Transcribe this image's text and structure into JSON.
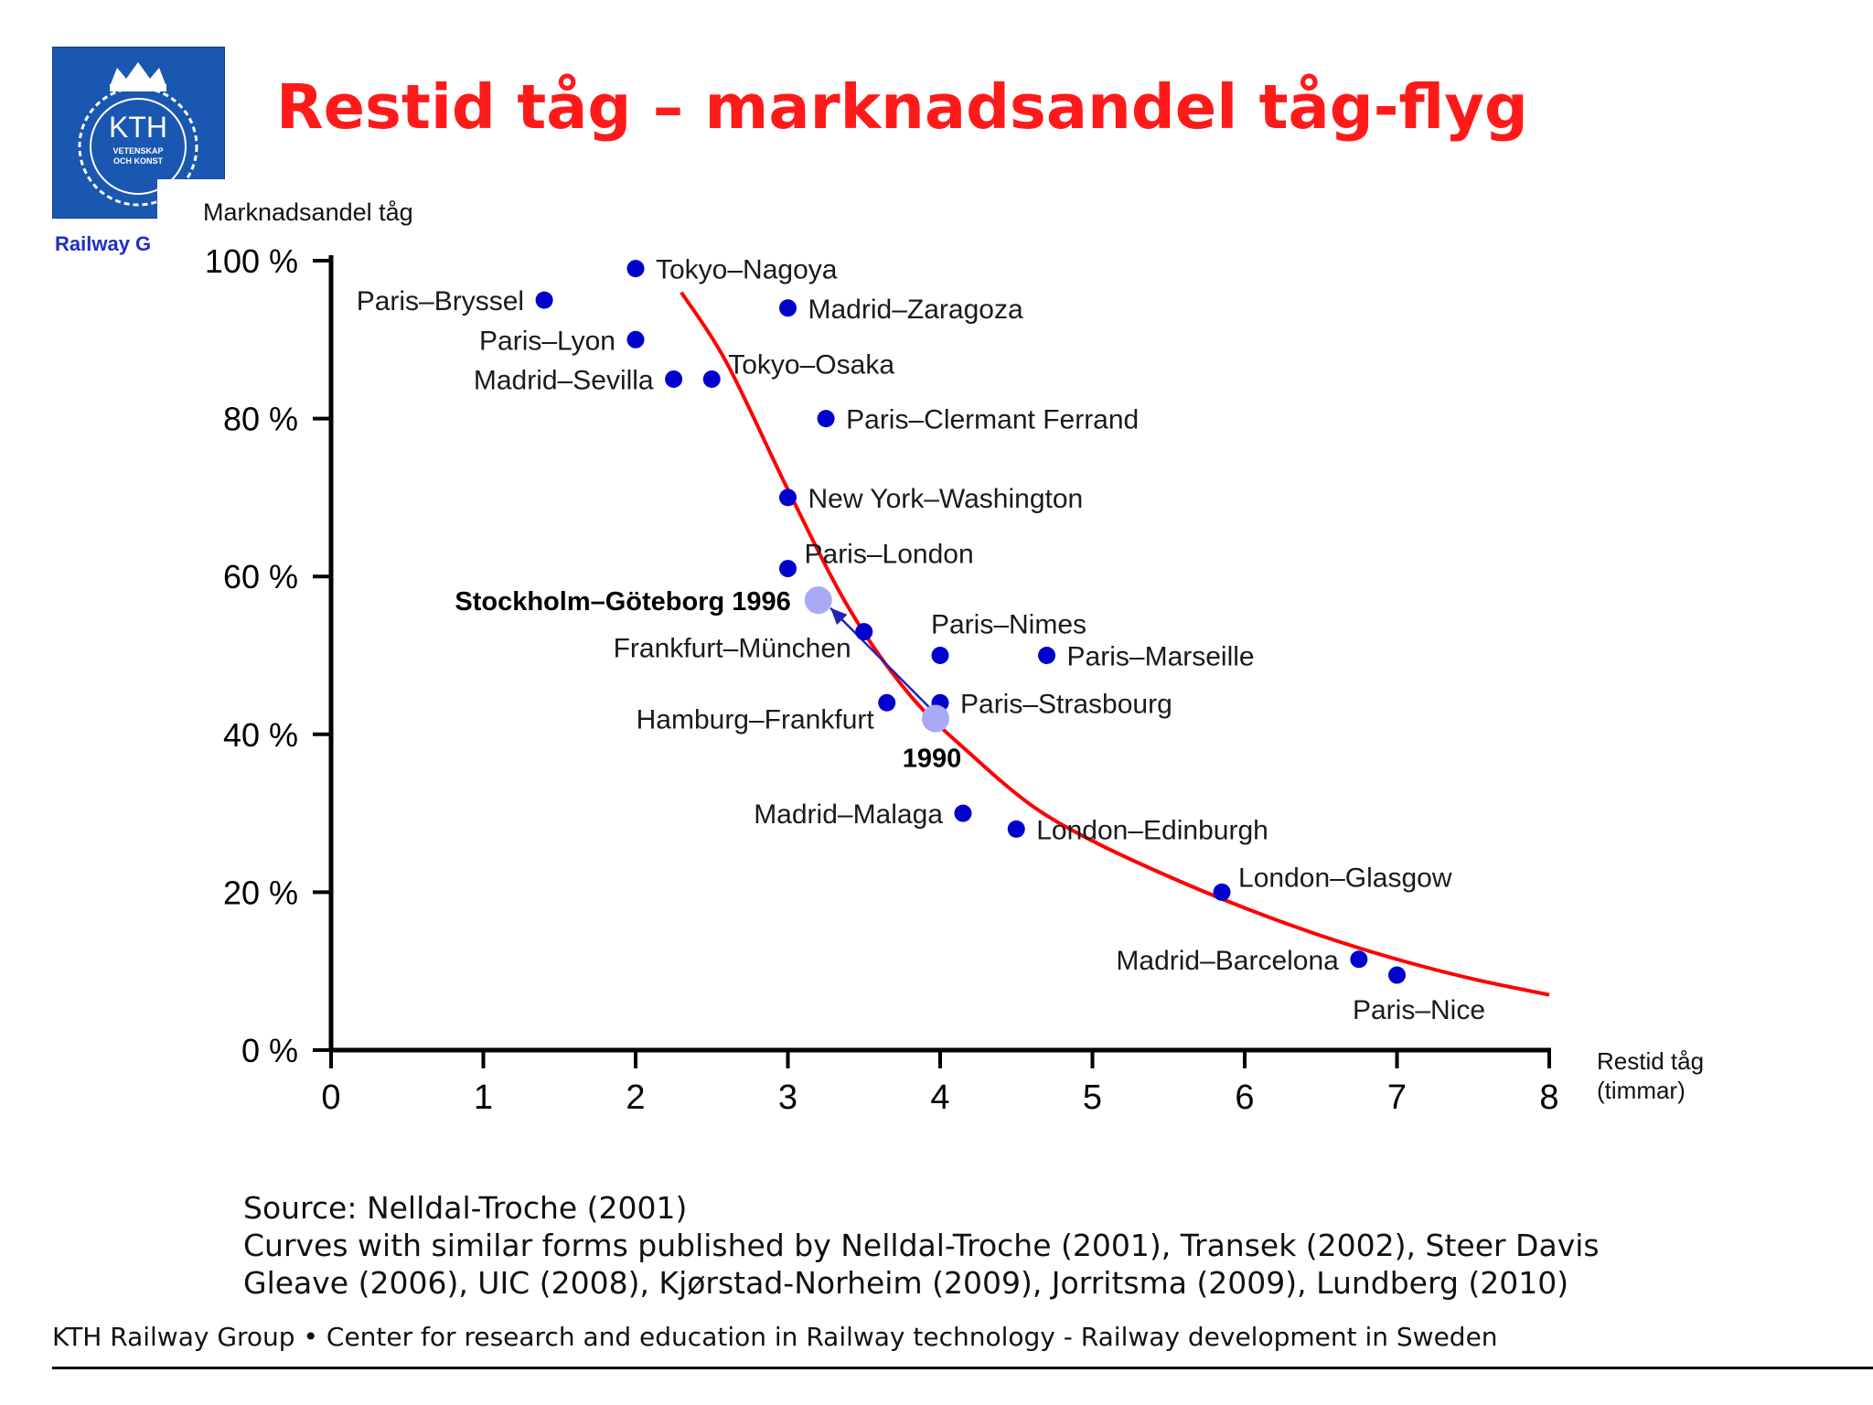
{
  "header": {
    "title": "Restid tåg – marknadsandel tåg-flyg",
    "logo_text": "KTH",
    "logo_sub1": "VETENSKAP",
    "logo_sub2": "OCH KONST",
    "logo_tag": "Railway G"
  },
  "source": {
    "line1": "Source: Nelldal-Troche (2001)",
    "line2": "Curves with similar forms published by Nelldal-Troche (2001), Transek (2002), Steer Davis",
    "line3": "Gleave (2006), UIC (2008), Kjørstad-Norheim (2009), Jorritsma (2009), Lundberg (2010)"
  },
  "footer": {
    "group": "KTH Railway Group",
    "bullet": "•",
    "text": "Center for research and education in Railway technology - Railway development in Sweden"
  },
  "colors": {
    "title": "#ff1a1a",
    "logo_bg": "#1a57b0",
    "point": "#0000cc",
    "highlight_point": "#a9a9f5",
    "curve": "#ff0000",
    "arrow": "#2222bb"
  },
  "chart_data": {
    "type": "scatter",
    "ylabel": "Marknadsandel tåg",
    "xlabel_line1": "Restid  tåg",
    "xlabel_line2": "(timmar)",
    "xlim": [
      0,
      8
    ],
    "ylim": [
      0,
      100
    ],
    "x_ticks": [
      "0",
      "1",
      "2",
      "3",
      "4",
      "5",
      "6",
      "7",
      "8"
    ],
    "y_ticks": [
      {
        "value": 0,
        "label": "0 %"
      },
      {
        "value": 20,
        "label": "20 %"
      },
      {
        "value": 40,
        "label": "40 %"
      },
      {
        "value": 60,
        "label": "60 %"
      },
      {
        "value": 80,
        "label": "80 %"
      },
      {
        "value": 100,
        "label": "100 %"
      }
    ],
    "points": [
      {
        "label": "Tokyo–Nagoya",
        "x": 2.0,
        "y": 99,
        "label_side": "right"
      },
      {
        "label": "Paris–Bryssel",
        "x": 1.4,
        "y": 95,
        "label_side": "left"
      },
      {
        "label": "Madrid–Zaragoza",
        "x": 3.0,
        "y": 94,
        "label_side": "right"
      },
      {
        "label": "Paris–Lyon",
        "x": 2.0,
        "y": 90,
        "label_side": "left"
      },
      {
        "label": "Madrid–Sevilla",
        "x": 2.25,
        "y": 85,
        "label_side": "left"
      },
      {
        "label": "Tokyo–Osaka",
        "x": 2.5,
        "y": 85,
        "label_side": "right-up"
      },
      {
        "label": "Paris–Clermant Ferrand",
        "x": 3.25,
        "y": 80,
        "label_side": "right"
      },
      {
        "label": "New York–Washington",
        "x": 3.0,
        "y": 70,
        "label_side": "right"
      },
      {
        "label": "Paris–London",
        "x": 3.0,
        "y": 61,
        "label_side": "right-up"
      },
      {
        "label": "Frankfurt–München",
        "x": 3.5,
        "y": 53,
        "label_side": "left-down"
      },
      {
        "label": "Paris–Nimes",
        "x": 4.0,
        "y": 50,
        "label_side": "above"
      },
      {
        "label": "Paris–Marseille",
        "x": 4.7,
        "y": 50,
        "label_side": "right"
      },
      {
        "label": "Hamburg–Frankfurt",
        "x": 3.65,
        "y": 44,
        "label_side": "left-down"
      },
      {
        "label": "Paris–Strasbourg",
        "x": 4.0,
        "y": 44,
        "label_side": "right"
      },
      {
        "label": "Madrid–Malaga",
        "x": 4.15,
        "y": 30,
        "label_side": "left"
      },
      {
        "label": "London–Edinburgh",
        "x": 4.5,
        "y": 28,
        "label_side": "right"
      },
      {
        "label": "London–Glasgow",
        "x": 5.85,
        "y": 20,
        "label_side": "right-up"
      },
      {
        "label": "Madrid–Barcelona",
        "x": 6.75,
        "y": 11.5,
        "label_side": "left"
      },
      {
        "label": "Paris–Nice",
        "x": 7.0,
        "y": 9.5,
        "label_side": "below"
      }
    ],
    "highlights": [
      {
        "label": "Stockholm–Göteborg  1996",
        "x": 3.2,
        "y": 57,
        "label_side": "left",
        "bold": true
      },
      {
        "label": "1990",
        "x": 3.97,
        "y": 42,
        "label_side": "below",
        "bold": true
      }
    ],
    "arrow": {
      "from": [
        3.95,
        43
      ],
      "to": [
        3.28,
        56
      ]
    },
    "curve": {
      "x": [
        2.3,
        2.6,
        3.0,
        3.4,
        3.8,
        4.2,
        4.6,
        5.0,
        5.5,
        6.0,
        6.5,
        7.0,
        7.5,
        8.0
      ],
      "y": [
        96,
        87,
        71,
        56,
        45,
        37.5,
        31,
        26.5,
        22,
        18,
        14.5,
        11.5,
        9,
        7
      ]
    }
  }
}
